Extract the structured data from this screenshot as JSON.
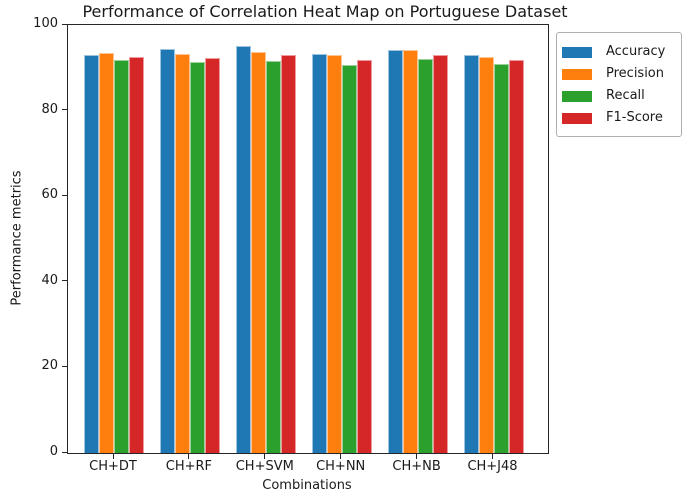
{
  "title": "Performance of Correlation Heat Map on Portuguese Dataset",
  "chart_data": {
    "type": "bar",
    "title": "Performance of Correlation Heat Map on Portuguese Dataset",
    "xlabel": "Combinations",
    "ylabel": "Performance metrics",
    "categories": [
      "CH+DT",
      "CH+RF",
      "CH+SVM",
      "CH+NN",
      "CH+NB",
      "CH+J48"
    ],
    "series": [
      {
        "name": "Accuracy",
        "color": "#1f77b4",
        "edge_color": "#9cc3df",
        "values": [
          93.0,
          94.4,
          95.0,
          93.2,
          94.1,
          93.0
        ]
      },
      {
        "name": "Precision",
        "color": "#ff7f0e",
        "edge_color": "#ffc493",
        "values": [
          93.5,
          93.3,
          93.8,
          92.9,
          94.2,
          92.6
        ]
      },
      {
        "name": "Recall",
        "color": "#2ca02c",
        "edge_color": "#9bd29b",
        "values": [
          91.8,
          91.4,
          91.7,
          90.6,
          92.0,
          90.8
        ]
      },
      {
        "name": "F1-Score",
        "color": "#d62728",
        "edge_color": "#ed9b9c",
        "values": [
          92.6,
          92.3,
          93.0,
          91.9,
          92.9,
          91.9
        ]
      }
    ],
    "ylim": [
      0,
      100
    ],
    "yticks": [
      0,
      20,
      40,
      60,
      80,
      100
    ],
    "grid": false,
    "legend_position": "outside upper right",
    "spine_color": "#262626",
    "background_color": "#ffffff"
  }
}
